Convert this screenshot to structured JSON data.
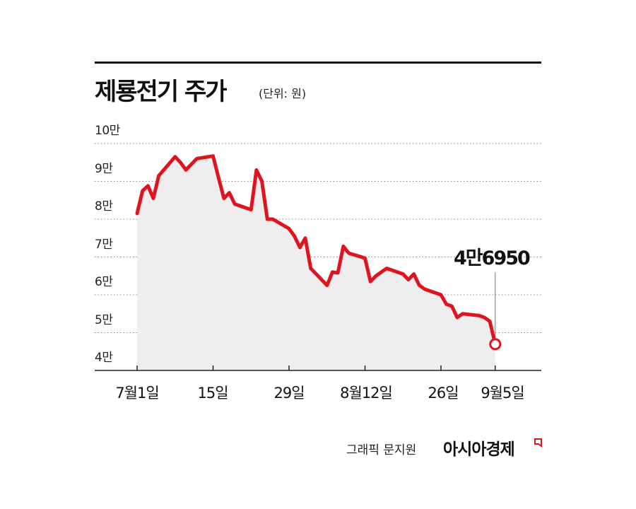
{
  "title": "제룡전기 주가",
  "unit_label": "(단위: 원)",
  "credit": "그래픽 문지원",
  "brand": "아시아경제",
  "callout_label": "4만6950",
  "colors": {
    "line": "#e0141e",
    "fill": "#eeeeee",
    "axis": "#222222",
    "grid": "#888888"
  },
  "y_tick_labels": [
    "10만",
    "9만",
    "8만",
    "7만",
    "6만",
    "5만",
    "4만"
  ],
  "x_tick_labels": [
    "7월1일",
    "15일",
    "29일",
    "8월12일",
    "26일",
    "9월5일"
  ],
  "chart_data": {
    "type": "area",
    "title": "제룡전기 주가",
    "unit": "원",
    "ylim": [
      40000,
      100000
    ],
    "y_ticks": [
      100000,
      90000,
      80000,
      70000,
      60000,
      50000,
      40000
    ],
    "x_tick_dates": [
      "7/1",
      "7/15",
      "7/29",
      "8/12",
      "8/26",
      "9/5"
    ],
    "series": [
      {
        "x": [
          "7/1",
          "7/2",
          "7/3",
          "7/4",
          "7/5",
          "7/8",
          "7/9",
          "7/10",
          "7/11",
          "7/12",
          "7/15",
          "7/16",
          "7/17",
          "7/18",
          "7/19",
          "7/22",
          "7/23",
          "7/24",
          "7/25",
          "7/26",
          "7/29",
          "7/30",
          "7/31",
          "8/1",
          "8/2",
          "8/5",
          "8/6",
          "8/7",
          "8/8",
          "8/9",
          "8/12",
          "8/13",
          "8/14",
          "8/16",
          "8/19",
          "8/20",
          "8/21",
          "8/22",
          "8/23",
          "8/26",
          "8/27",
          "8/28",
          "8/29",
          "8/30",
          "9/2",
          "9/3",
          "9/4",
          "9/5"
        ],
        "values": [
          81500,
          87500,
          88800,
          85500,
          91500,
          96500,
          95000,
          93000,
          94500,
          96000,
          96700,
          91000,
          85500,
          87000,
          84000,
          82500,
          93000,
          90000,
          80000,
          80000,
          77500,
          75500,
          72500,
          75000,
          67000,
          62500,
          66000,
          65800,
          72800,
          71000,
          69700,
          63500,
          65000,
          67000,
          65500,
          64000,
          65500,
          62500,
          61500,
          60000,
          57500,
          57000,
          54000,
          55000,
          54500,
          54000,
          53000,
          46950
        ]
      }
    ],
    "last_value": 46950,
    "grid": "horizontal dotted",
    "legend": "none"
  }
}
